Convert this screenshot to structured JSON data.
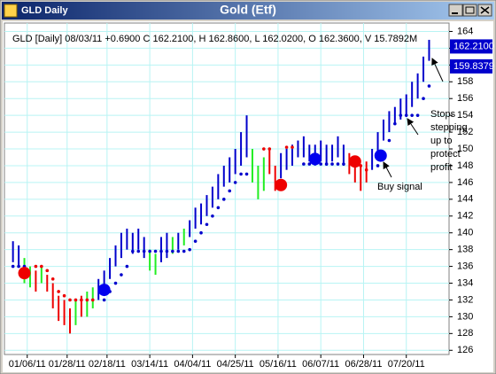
{
  "window": {
    "title": "GLD Daily"
  },
  "chart_data": {
    "type": "hilo",
    "title": "Gold (Etf)",
    "subtitle": "GLD [Daily] 08/03/11 +0.6900 C 162.2100, H 162.8600, L 162.0200, O 162.3600, V 15.7892M",
    "xlim": [
      -3,
      153
    ],
    "xticks": [
      {
        "value": 5,
        "label": "01/06/11"
      },
      {
        "value": 19,
        "label": "01/28/11"
      },
      {
        "value": 33,
        "label": "02/18/11"
      },
      {
        "value": 48,
        "label": "03/14/11"
      },
      {
        "value": 63,
        "label": "04/04/11"
      },
      {
        "value": 78,
        "label": "04/25/11"
      },
      {
        "value": 93,
        "label": "05/16/11"
      },
      {
        "value": 108,
        "label": "06/07/11"
      },
      {
        "value": 123,
        "label": "06/28/11"
      },
      {
        "value": 138,
        "label": "07/20/11"
      }
    ],
    "ylim": [
      125.5,
      165
    ],
    "yticks": [
      126,
      128,
      130,
      132,
      134,
      136,
      138,
      140,
      142,
      144,
      146,
      148,
      150,
      152,
      154,
      156,
      158,
      160,
      162,
      164
    ],
    "grid": true,
    "bars": [
      {
        "color": "#0000cc",
        "x": [
          0,
          2,
          30,
          32,
          34,
          36,
          38,
          40,
          42,
          44,
          46,
          52,
          54,
          58,
          62,
          64,
          66,
          68,
          70,
          72,
          74,
          76,
          78,
          80,
          82,
          94,
          96,
          98,
          100,
          102,
          104,
          106,
          108,
          110,
          112,
          114,
          116,
          126,
          128,
          130,
          132,
          134,
          136,
          138,
          140,
          142,
          144,
          146
        ],
        "low": [
          136.5,
          136,
          132,
          133,
          134.5,
          136,
          137,
          138,
          137.5,
          138,
          137,
          136.5,
          137,
          138,
          139.5,
          140.5,
          141,
          142,
          143,
          144,
          145.5,
          146,
          147,
          148,
          149,
          146.5,
          147.5,
          148,
          149,
          149,
          148.5,
          148.5,
          148.5,
          148,
          148.5,
          149,
          148,
          147.5,
          149,
          151,
          152,
          153,
          153.5,
          154,
          155,
          156,
          158,
          160.5
        ],
        "high": [
          139,
          138.5,
          134.5,
          135.5,
          137,
          138.5,
          140,
          140.5,
          140,
          140.5,
          139.5,
          139.5,
          140,
          140,
          141.5,
          143,
          143.5,
          144.5,
          145.5,
          147,
          148,
          149,
          150,
          152,
          154,
          149.5,
          150,
          150.5,
          151,
          151.5,
          150.5,
          150.5,
          151,
          150.5,
          150.5,
          151.5,
          150.5,
          150,
          152,
          153.5,
          154.5,
          155,
          156,
          156.5,
          158,
          159,
          161,
          163
        ]
      },
      {
        "color": "#22ee22",
        "x": [
          4,
          6,
          10,
          22,
          26,
          28,
          48,
          50,
          56,
          60,
          84,
          86,
          88
        ],
        "low": [
          134,
          133.5,
          134,
          129,
          130,
          131,
          135.5,
          135,
          137.5,
          138.5,
          146,
          144,
          145
        ],
        "high": [
          137,
          136,
          136,
          132,
          133,
          133.5,
          138,
          137.5,
          139.5,
          140.5,
          150,
          148,
          149
        ]
      },
      {
        "color": "#ee0000",
        "x": [
          8,
          12,
          14,
          16,
          18,
          20,
          24,
          90,
          92,
          118,
          120,
          122,
          124
        ],
        "low": [
          133,
          133,
          131,
          129.5,
          129,
          128,
          130,
          147,
          145,
          147,
          146,
          145,
          146
        ],
        "high": [
          135.5,
          135,
          134,
          132.5,
          132,
          131,
          132.5,
          150,
          148,
          149.5,
          149,
          148,
          148.5
        ]
      }
    ],
    "stops": [
      {
        "color": "#0000cc",
        "x": [
          0,
          2,
          4,
          32,
          34,
          36,
          38,
          40,
          42,
          44,
          46,
          48,
          50,
          52,
          54,
          56,
          58,
          60,
          62,
          64,
          66,
          68,
          70,
          72,
          74,
          76,
          78,
          80,
          82,
          102,
          104,
          106,
          108,
          110,
          112,
          114,
          116,
          128,
          130,
          132,
          134,
          136,
          138,
          140,
          142,
          144,
          146
        ],
        "values": [
          136,
          136,
          136,
          132,
          133,
          134,
          135,
          136,
          137.8,
          137.8,
          137.8,
          137.8,
          137.8,
          137.8,
          137.8,
          137.8,
          137.8,
          137.8,
          138,
          139,
          140,
          141,
          142,
          143,
          144,
          145,
          146,
          147,
          147,
          148.2,
          148.2,
          148.2,
          148.2,
          148.2,
          148.2,
          148.2,
          148.2,
          148,
          149,
          151,
          153,
          154,
          154,
          154,
          154,
          156,
          157.5
        ]
      },
      {
        "color": "#ee0000",
        "x": [
          8,
          10,
          12,
          14,
          16,
          18,
          20,
          22,
          24,
          26,
          28,
          88,
          90,
          96,
          98,
          120,
          122,
          124
        ],
        "values": [
          136,
          136,
          135.5,
          134.5,
          133,
          132.5,
          132,
          132,
          132,
          132,
          132,
          150,
          150,
          150.2,
          150.2,
          148,
          148,
          147.5
        ]
      }
    ],
    "signals": [
      {
        "color": "#ee0000",
        "x": [
          4,
          94,
          120
        ],
        "values": [
          135.2,
          145.7,
          148.5
        ]
      },
      {
        "color": "#0000ee",
        "x": [
          32,
          106,
          129
        ],
        "values": [
          133.2,
          148.8,
          149.2
        ]
      }
    ],
    "price_markers": {
      "color": "#0000cc",
      "values": [
        162.21,
        159.8379
      ],
      "value_labels": [
        "162.2100",
        "159.8379"
      ]
    },
    "annotations": [
      {
        "text": [
          "Stops",
          "stepping",
          "up to",
          "protect",
          "profit"
        ]
      },
      {
        "text": "Buy signal"
      }
    ]
  }
}
